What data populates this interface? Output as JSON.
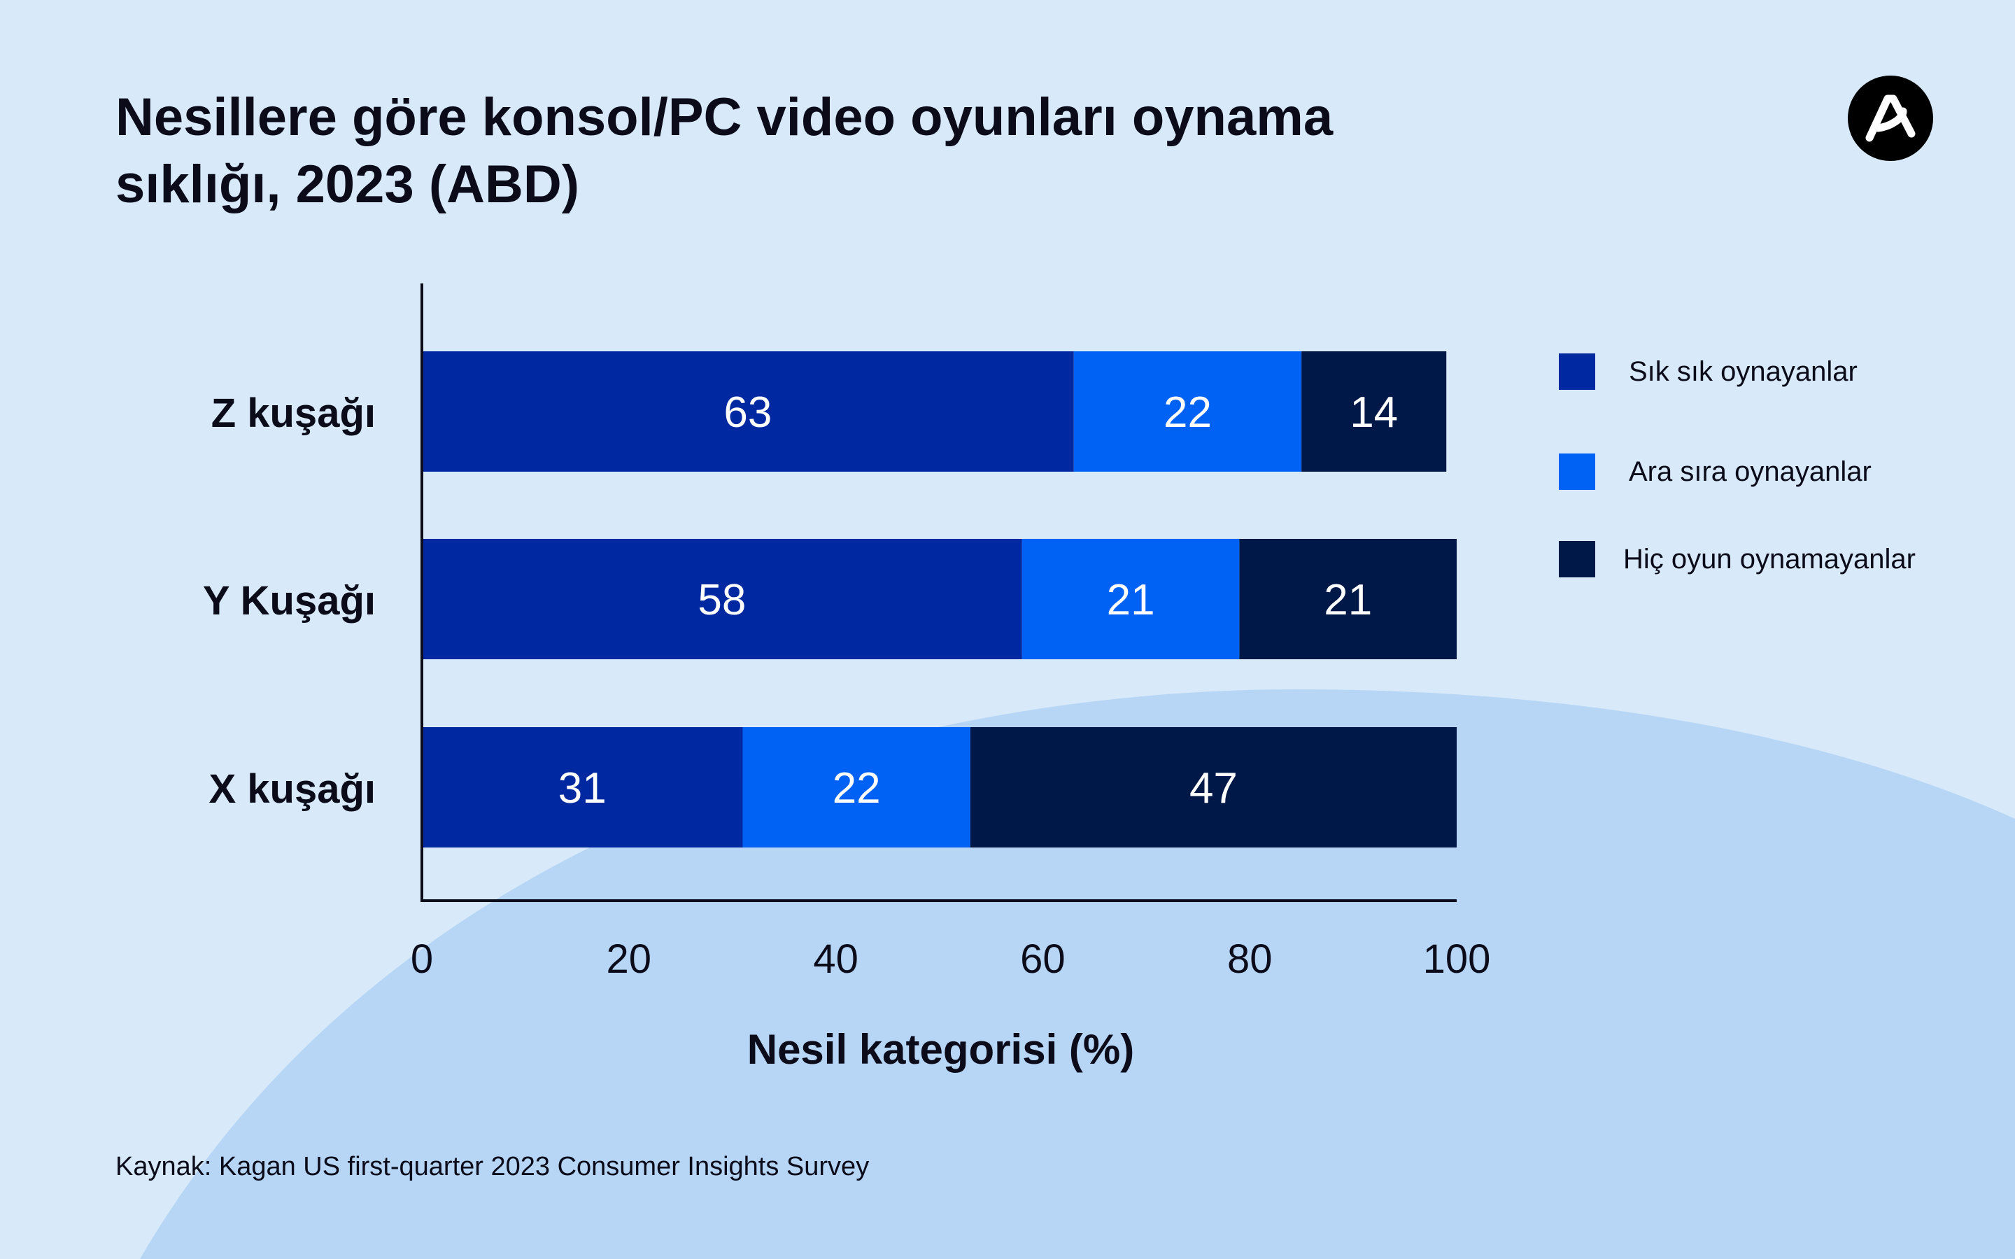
{
  "title": "Nesillere göre konsol/PC video oyunları oynama sıklığı, 2023 (ABD)",
  "source": "Kaynak: Kagan US first-quarter 2023 Consumer Insights Survey",
  "colors": {
    "background": "#d8eaf9",
    "background_curve": "#b7d6f6",
    "series": [
      "#0028a0",
      "#0062f5",
      "#001848"
    ],
    "text": "#0b0b1a"
  },
  "chart_data": {
    "type": "bar",
    "orientation": "horizontal",
    "stacked": true,
    "categories": [
      "Z kuşağı",
      "Y Kuşağı",
      "X kuşağı"
    ],
    "series": [
      {
        "name": "Sık sık oynayanlar",
        "values": [
          63,
          58,
          31
        ]
      },
      {
        "name": "Ara sıra oynayanlar",
        "values": [
          22,
          21,
          22
        ]
      },
      {
        "name": "Hiç oyun oynamayanlar",
        "values": [
          14,
          21,
          47
        ]
      }
    ],
    "xlabel": "Nesil kategorisi (%)",
    "ylabel": "",
    "xlim": [
      0,
      100
    ],
    "xticks": [
      0,
      20,
      40,
      60,
      80,
      100
    ],
    "grid": false,
    "legend": "right",
    "data_labels": true
  }
}
